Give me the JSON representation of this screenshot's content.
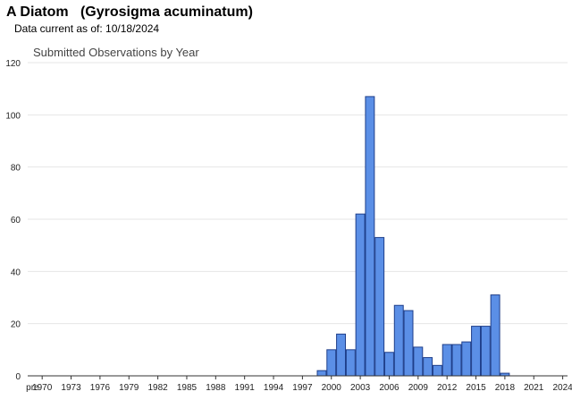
{
  "header": {
    "title": "A Diatom   (Gyrosigma acuminatum)",
    "data_current": "Data current as of: 10/18/2024"
  },
  "colors": {
    "bar_fill": "#5b8fe6",
    "bar_stroke": "#1f3f8a",
    "grid": "#e6e6e6",
    "axis": "#333333"
  },
  "chart_data": {
    "type": "bar",
    "title": "Submitted Observations by Year",
    "xlabel": "",
    "ylabel": "",
    "ylim": [
      0,
      120
    ],
    "yticks": [
      0,
      20,
      40,
      60,
      80,
      100,
      120
    ],
    "grid": true,
    "categories": [
      "pre",
      "1970",
      "1971",
      "1972",
      "1973",
      "1974",
      "1975",
      "1976",
      "1977",
      "1978",
      "1979",
      "1980",
      "1981",
      "1982",
      "1983",
      "1984",
      "1985",
      "1986",
      "1987",
      "1988",
      "1989",
      "1990",
      "1991",
      "1992",
      "1993",
      "1994",
      "1995",
      "1996",
      "1997",
      "1998",
      "1999",
      "2000",
      "2001",
      "2002",
      "2003",
      "2004",
      "2005",
      "2006",
      "2007",
      "2008",
      "2009",
      "2010",
      "2011",
      "2012",
      "2013",
      "2014",
      "2015",
      "2016",
      "2017",
      "2018",
      "2019",
      "2020",
      "2021",
      "2022",
      "2023",
      "2024"
    ],
    "x_tick_labels": [
      "pre",
      "1970",
      "1973",
      "1976",
      "1979",
      "1982",
      "1985",
      "1988",
      "1991",
      "1994",
      "1997",
      "2000",
      "2003",
      "2006",
      "2009",
      "2012",
      "2015",
      "2018",
      "2021",
      "2024"
    ],
    "values": [
      0,
      0,
      0,
      0,
      0,
      0,
      0,
      0,
      0,
      0,
      0,
      0,
      0,
      0,
      0,
      0,
      0,
      0,
      0,
      0,
      0,
      0,
      0,
      0,
      0,
      0,
      0,
      0,
      0,
      0,
      2,
      10,
      16,
      10,
      62,
      107,
      53,
      9,
      27,
      25,
      11,
      7,
      4,
      12,
      12,
      13,
      19,
      19,
      31,
      1,
      0,
      0,
      0,
      0,
      0,
      0
    ]
  }
}
